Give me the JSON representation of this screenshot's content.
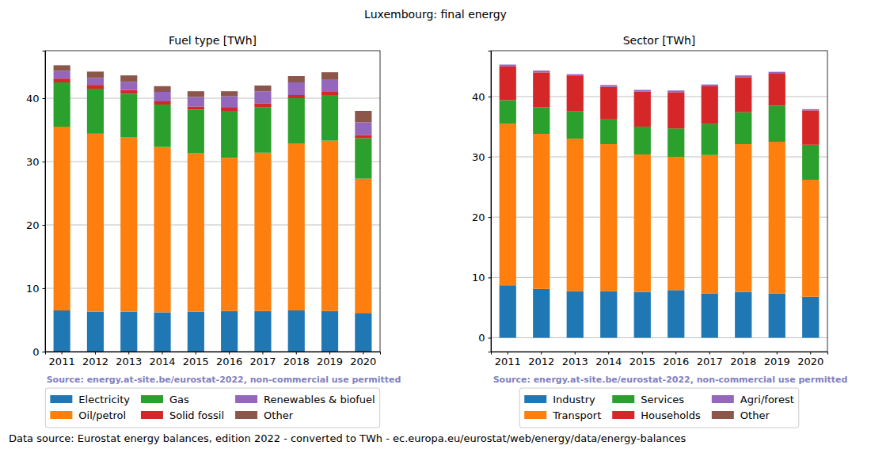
{
  "title": "Luxembourg: final energy",
  "footnote": "Data source: Eurostat energy balances, edition 2022 - converted to TWh - ec.europa.eu/eurostat/web/energy/data/energy-balances",
  "chart_data": [
    {
      "type": "bar",
      "title": "Fuel type [TWh]",
      "stacked": true,
      "grid": true,
      "legend": "bottom",
      "annotations": [
        "Source: energy.at-site.be/eurostat-2022, non-commercial use permitted"
      ],
      "categories": [
        "2011",
        "2012",
        "2013",
        "2014",
        "2015",
        "2016",
        "2017",
        "2018",
        "2019",
        "2020"
      ],
      "ylim": [
        0,
        47.5
      ],
      "yticks": [
        0,
        10,
        20,
        30,
        40
      ],
      "series": [
        {
          "name": "Electricity",
          "color": "#1f77b4",
          "values": [
            6.5,
            6.3,
            6.3,
            6.2,
            6.3,
            6.4,
            6.4,
            6.5,
            6.4,
            6.1
          ]
        },
        {
          "name": "Oil/petrol",
          "color": "#ff7f0e",
          "values": [
            29.0,
            28.1,
            27.5,
            26.1,
            25.0,
            24.2,
            25.0,
            26.3,
            26.9,
            21.2
          ]
        },
        {
          "name": "Gas",
          "color": "#2ca02c",
          "values": [
            7.0,
            7.1,
            6.9,
            6.7,
            6.9,
            7.4,
            7.2,
            7.2,
            7.2,
            6.4
          ]
        },
        {
          "name": "Solid fossil",
          "color": "#d62728",
          "values": [
            0.6,
            0.6,
            0.6,
            0.5,
            0.5,
            0.6,
            0.6,
            0.5,
            0.5,
            0.5
          ]
        },
        {
          "name": "Renewables & biofuel",
          "color": "#9467bd",
          "values": [
            1.2,
            1.1,
            1.3,
            1.5,
            1.5,
            1.7,
            1.9,
            2.0,
            1.9,
            2.0
          ]
        },
        {
          "name": "Other",
          "color": "#8c564b",
          "values": [
            0.9,
            1.0,
            1.0,
            0.9,
            0.9,
            0.8,
            0.9,
            1.0,
            1.2,
            1.8
          ]
        }
      ]
    },
    {
      "type": "bar",
      "title": "Sector [TWh]",
      "stacked": true,
      "grid": true,
      "legend": "bottom",
      "annotations": [
        "Source: energy.at-site.be/eurostat-2022, non-commercial use permitted"
      ],
      "categories": [
        "2011",
        "2012",
        "2013",
        "2014",
        "2015",
        "2016",
        "2017",
        "2018",
        "2019",
        "2020"
      ],
      "ylim": [
        -2.3,
        47.6
      ],
      "yticks": [
        0,
        10,
        20,
        30,
        40
      ],
      "series": [
        {
          "name": "Industry",
          "color": "#1f77b4",
          "values": [
            8.7,
            8.1,
            7.7,
            7.7,
            7.6,
            7.9,
            7.3,
            7.6,
            7.3,
            6.8
          ]
        },
        {
          "name": "Transport",
          "color": "#ff7f0e",
          "values": [
            26.8,
            25.7,
            25.3,
            24.4,
            22.8,
            22.1,
            23.0,
            24.5,
            25.2,
            19.4
          ]
        },
        {
          "name": "Services",
          "color": "#2ca02c",
          "values": [
            3.9,
            4.4,
            4.6,
            4.1,
            4.6,
            4.7,
            5.2,
            5.3,
            6.0,
            5.8
          ]
        },
        {
          "name": "Households",
          "color": "#d62728",
          "values": [
            5.6,
            5.8,
            5.8,
            5.4,
            5.8,
            6.0,
            6.2,
            5.8,
            5.3,
            5.7
          ]
        },
        {
          "name": "Agri/forest",
          "color": "#9467bd",
          "values": [
            0.3,
            0.3,
            0.3,
            0.3,
            0.3,
            0.3,
            0.3,
            0.3,
            0.3,
            0.2
          ]
        },
        {
          "name": "Other",
          "color": "#8c564b",
          "values": [
            0.0,
            0.0,
            0.0,
            0.0,
            0.0,
            0.0,
            0.0,
            0.0,
            0.0,
            0.0
          ]
        }
      ]
    }
  ]
}
